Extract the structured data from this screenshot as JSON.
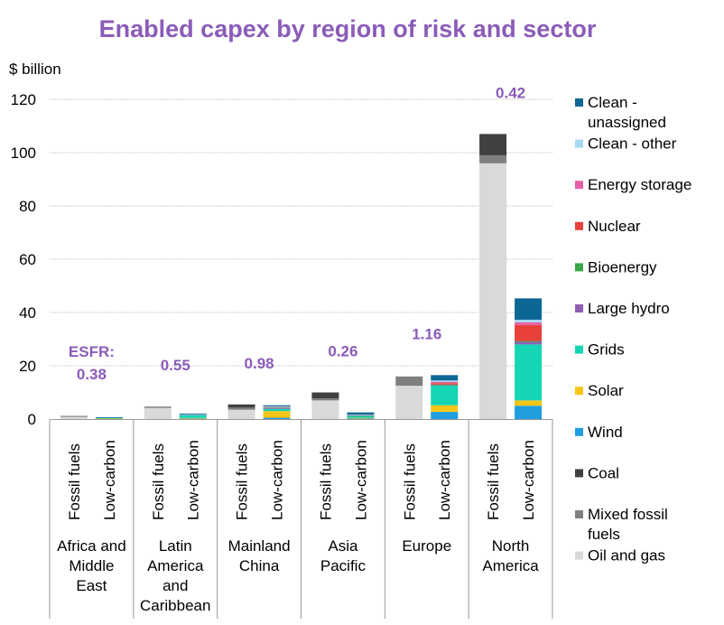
{
  "chart_data": {
    "type": "bar",
    "stacked": true,
    "title": "Enabled capex by region of risk and sector",
    "ylabel": "$ billion",
    "ylim": [
      0,
      120
    ],
    "yticks": [
      0,
      20,
      40,
      60,
      80,
      100,
      120
    ],
    "grid": true,
    "legend_position": "right",
    "categories": [
      "Africa and Middle East|Fossil fuels",
      "Africa and Middle East|Low-carbon",
      "Latin America and Caribbean|Fossil fuels",
      "Latin America and Caribbean|Low-carbon",
      "Mainland China|Fossil fuels",
      "Mainland China|Low-carbon",
      "Asia Pacific|Fossil fuels",
      "Asia Pacific|Low-carbon",
      "Europe|Fossil fuels",
      "Europe|Low-carbon",
      "North America|Fossil fuels",
      "North America|Low-carbon"
    ],
    "groups": [
      {
        "region": [
          "Africa and",
          "Middle",
          "East"
        ],
        "bars": [
          "Fossil fuels",
          "Low-carbon"
        ],
        "esfr_label": "ESFR:",
        "esfr": "0.38"
      },
      {
        "region": [
          "Latin",
          "America",
          "and",
          "Caribbean"
        ],
        "bars": [
          "Fossil fuels",
          "Low-carbon"
        ],
        "esfr_label": "",
        "esfr": "0.55"
      },
      {
        "region": [
          "Mainland",
          "China"
        ],
        "bars": [
          "Fossil fuels",
          "Low-carbon"
        ],
        "esfr_label": "",
        "esfr": "0.98"
      },
      {
        "region": [
          "Asia",
          "Pacific"
        ],
        "bars": [
          "Fossil fuels",
          "Low-carbon"
        ],
        "esfr_label": "",
        "esfr": "0.26"
      },
      {
        "region": [
          "Europe"
        ],
        "bars": [
          "Fossil fuels",
          "Low-carbon"
        ],
        "esfr_label": "",
        "esfr": "1.16"
      },
      {
        "region": [
          "North",
          "America"
        ],
        "bars": [
          "Fossil fuels",
          "Low-carbon"
        ],
        "esfr_label": "",
        "esfr": "0.42"
      }
    ],
    "series": [
      {
        "name": "Oil and gas",
        "color": "#d9d9d9",
        "values": [
          0.8,
          0,
          4.2,
          0,
          3.5,
          0,
          7.0,
          0,
          12.5,
          0,
          96.0,
          0
        ]
      },
      {
        "name": "Mixed fossil fuels",
        "color": "#7f7f7f",
        "values": [
          0.4,
          0,
          0.5,
          0,
          0.8,
          0,
          0.8,
          0,
          3.5,
          0,
          3.0,
          0
        ]
      },
      {
        "name": "Coal",
        "color": "#404040",
        "values": [
          0,
          0,
          0,
          0,
          1.2,
          0,
          2.2,
          0,
          0,
          0,
          8.0,
          0
        ]
      },
      {
        "name": "Wind",
        "color": "#1f9ee0",
        "values": [
          0,
          0.1,
          0,
          0.2,
          0,
          0.5,
          0,
          0.3,
          0,
          2.7,
          0,
          5.0
        ]
      },
      {
        "name": "Solar",
        "color": "#f5c518",
        "values": [
          0,
          0.1,
          0,
          0.2,
          0,
          2.5,
          0,
          0.2,
          0,
          2.5,
          0,
          2.0
        ]
      },
      {
        "name": "Grids",
        "color": "#14d6b4",
        "values": [
          0,
          0.3,
          0,
          1.2,
          0,
          0.8,
          0,
          0.8,
          0,
          7.3,
          0,
          21.0
        ]
      },
      {
        "name": "Large hydro",
        "color": "#8e5fb3",
        "values": [
          0,
          0,
          0,
          0.1,
          0,
          0.4,
          0,
          0.1,
          0,
          0.3,
          0,
          1.0
        ]
      },
      {
        "name": "Bioenergy",
        "color": "#3aa64a",
        "values": [
          0,
          0,
          0,
          0,
          0,
          0.1,
          0,
          0.1,
          0,
          0.2,
          0,
          0.3
        ]
      },
      {
        "name": "Nuclear",
        "color": "#e8403a",
        "values": [
          0,
          0,
          0,
          0,
          0,
          0,
          0,
          0,
          0,
          0.5,
          0,
          6.0
        ]
      },
      {
        "name": "Energy storage",
        "color": "#e75fa8",
        "values": [
          0,
          0,
          0,
          0,
          0,
          0.3,
          0,
          0.1,
          0,
          0.5,
          0,
          1.0
        ]
      },
      {
        "name": "Clean - other",
        "color": "#a6d8f0",
        "values": [
          0,
          0,
          0,
          0.1,
          0,
          0.2,
          0,
          0.1,
          0,
          0.5,
          0,
          1.0
        ]
      },
      {
        "name": "Clean - unassigned",
        "color": "#0d6794",
        "values": [
          0,
          0.2,
          0,
          0.3,
          0,
          0.4,
          0,
          0.8,
          0,
          2.0,
          0,
          8.0
        ]
      }
    ],
    "legend": [
      {
        "lines": [
          "Clean -",
          "unassigned"
        ],
        "color": "#0d6794"
      },
      {
        "lines": [
          "Clean - other"
        ],
        "color": "#a6d8f0"
      },
      {
        "lines": [
          "Energy storage"
        ],
        "color": "#e75fa8"
      },
      {
        "lines": [
          "Nuclear"
        ],
        "color": "#e8403a"
      },
      {
        "lines": [
          "Bioenergy"
        ],
        "color": "#3aa64a"
      },
      {
        "lines": [
          "Large hydro"
        ],
        "color": "#8e5fb3"
      },
      {
        "lines": [
          "Grids"
        ],
        "color": "#14d6b4"
      },
      {
        "lines": [
          "Solar"
        ],
        "color": "#f5c518"
      },
      {
        "lines": [
          "Wind"
        ],
        "color": "#1f9ee0"
      },
      {
        "lines": [
          "Coal"
        ],
        "color": "#404040"
      },
      {
        "lines": [
          "Mixed fossil",
          "fuels"
        ],
        "color": "#7f7f7f"
      },
      {
        "lines": [
          "Oil and gas"
        ],
        "color": "#d9d9d9"
      }
    ],
    "colors": {
      "title": "#8b5cb8",
      "esfr": "#8b5cb8",
      "axis": "#999999",
      "grid": "#bfbfbf"
    }
  }
}
